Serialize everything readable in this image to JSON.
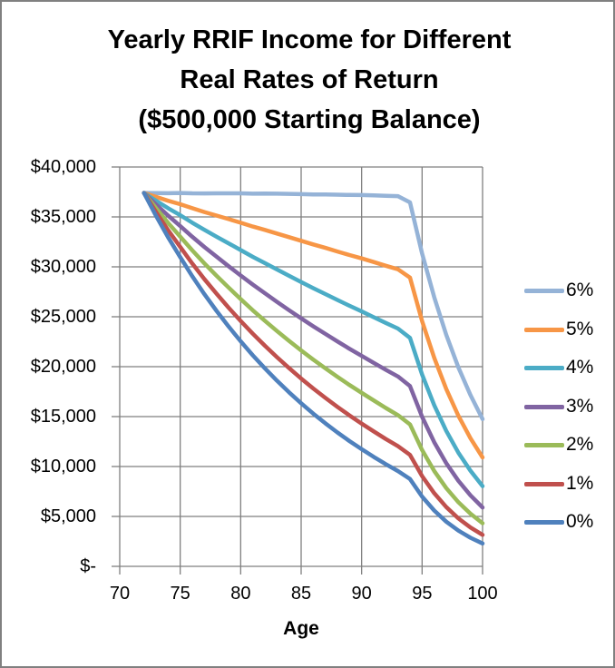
{
  "chart_data": {
    "type": "line",
    "title_lines": [
      "Yearly RRIF Income for Different",
      "Real Rates of Return",
      "($500,000 Starting Balance)"
    ],
    "xlabel": "Age",
    "ylabel": "",
    "xlim": [
      70,
      100
    ],
    "ylim": [
      0,
      40000
    ],
    "grid": true,
    "legend_position": "right",
    "x_ticks": [
      70,
      75,
      80,
      85,
      90,
      95,
      100
    ],
    "y_ticks": [
      {
        "label": "$40,000",
        "value": 40000
      },
      {
        "label": "$35,000",
        "value": 35000
      },
      {
        "label": "$30,000",
        "value": 30000
      },
      {
        "label": "$25,000",
        "value": 25000
      },
      {
        "label": "$20,000",
        "value": 20000
      },
      {
        "label": "$15,000",
        "value": 15000
      },
      {
        "label": "$10,000",
        "value": 10000
      },
      {
        "label": "$5,000",
        "value": 5000
      },
      {
        "label": "$-",
        "value": 0
      }
    ],
    "x": [
      72,
      73,
      74,
      75,
      76,
      77,
      78,
      79,
      80,
      81,
      82,
      83,
      84,
      85,
      86,
      87,
      88,
      89,
      90,
      91,
      92,
      93,
      94,
      95,
      96,
      97,
      98,
      99,
      100
    ],
    "series": [
      {
        "name": "6%",
        "color": "#95B3D7",
        "values": [
          37400,
          37388,
          37376,
          37404,
          37366,
          37356,
          37360,
          37366,
          37360,
          37329,
          37341,
          37328,
          37306,
          37284,
          37258,
          37249,
          37224,
          37201,
          37189,
          37155,
          37112,
          37081,
          36452,
          31349,
          26960,
          23185,
          19939,
          17148,
          14747
        ]
      },
      {
        "name": "5%",
        "color": "#F79646",
        "values": [
          37400,
          37009,
          36620,
          36275,
          35869,
          35494,
          35135,
          34780,
          34418,
          34036,
          33696,
          33336,
          32971,
          32608,
          32245,
          31898,
          31540,
          31185,
          30842,
          30480,
          30111,
          29751,
          28914,
          24577,
          20890,
          17757,
          15093,
          12829,
          10905
        ]
      },
      {
        "name": "4%",
        "color": "#4BACC6",
        "values": [
          37400,
          36629,
          35873,
          35169,
          34418,
          33707,
          33022,
          32350,
          31681,
          31004,
          30375,
          29736,
          29103,
          28480,
          27865,
          27273,
          26683,
          26099,
          25532,
          24957,
          24381,
          23819,
          22883,
          19222,
          16146,
          13563,
          11393,
          9570,
          8039
        ]
      },
      {
        "name": "3%",
        "color": "#8064A2",
        "values": [
          37400,
          36250,
          35133,
          34086,
          33011,
          31992,
          31015,
          30066,
          29136,
          28214,
          27350,
          26493,
          25654,
          24838,
          24042,
          23279,
          22526,
          21794,
          21086,
          20383,
          19690,
          19017,
          18058,
          14988,
          12440,
          10325,
          8570,
          7113,
          5904
        ]
      },
      {
        "name": "2%",
        "color": "#9BBB59",
        "values": [
          37400,
          35870,
          34401,
          33025,
          31648,
          30348,
          29111,
          27923,
          26773,
          25650,
          24600,
          23575,
          22584,
          21630,
          20712,
          19836,
          18986,
          18167,
          17383,
          16615,
          15868,
          15149,
          14216,
          11657,
          9559,
          7838,
          6427,
          5270,
          4322
        ]
      },
      {
        "name": "1%",
        "color": "#C0504D",
        "values": [
          37400,
          35491,
          33676,
          31987,
          30327,
          28772,
          27305,
          25911,
          24580,
          23297,
          22103,
          20953,
          19855,
          18810,
          17815,
          16875,
          15973,
          15114,
          14300,
          13514,
          12758,
          12038,
          11162,
          9041,
          7323,
          5932,
          4805,
          3892,
          3152
        ]
      },
      {
        "name": "0%",
        "color": "#4F81BD",
        "values": [
          37400,
          35111,
          32961,
          30972,
          29050,
          27264,
          25595,
          24026,
          22544,
          21135,
          19834,
          18598,
          17430,
          16332,
          15297,
          14329,
          13412,
          12549,
          11738,
          10965,
          10233,
          9542,
          8741,
          6992,
          5594,
          4475,
          3580,
          2864,
          2291
        ]
      }
    ]
  },
  "colors": {
    "gridline": "#7F7F7F",
    "axis": "#7F7F7F",
    "frame_border": "#808080",
    "background": "#FFFFFF",
    "text": "#000000"
  }
}
